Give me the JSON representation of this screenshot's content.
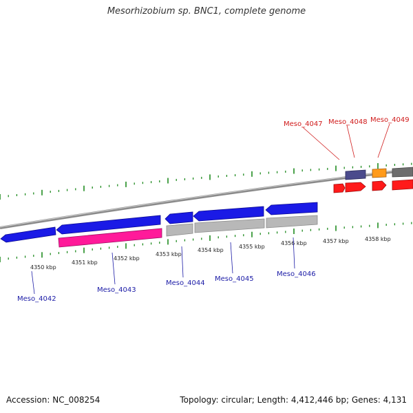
{
  "title": "Mesorhizobium sp. BNC1, complete genome",
  "footer": {
    "accession": "Accession: NC_008254",
    "summary": "Topology: circular; Length: 4,412,446 bp; Genes: 4,131"
  },
  "colors": {
    "backbone": "#8a8a8a",
    "tick": "#1e8a1e",
    "blue_gene": "#1a1ae6",
    "pink_gene": "#ff1a9a",
    "gray_gene": "#b8b8b8",
    "dark_gray_gene": "#6e6e6e",
    "purple_gene": "#4b4b8c",
    "orange_gene": "#ff9a1a",
    "red_gene": "#ff1a1a",
    "blue_label": "#1a1aa6",
    "red_label": "#d01a1a"
  },
  "kbp_ticks": [
    "4350 kbp",
    "4351 kbp",
    "4352 kbp",
    "4353 kbp",
    "4354 kbp",
    "4355 kbp",
    "4356 kbp",
    "4357 kbp",
    "4358 kbp"
  ],
  "genes": [
    {
      "name": "Meso_4042",
      "label_color": "blue_label"
    },
    {
      "name": "Meso_4043",
      "label_color": "blue_label"
    },
    {
      "name": "Meso_4044",
      "label_color": "blue_label"
    },
    {
      "name": "Meso_4045",
      "label_color": "blue_label"
    },
    {
      "name": "Meso_4046",
      "label_color": "blue_label"
    },
    {
      "name": "Meso_4047",
      "label_color": "red_label"
    },
    {
      "name": "Meso_4048",
      "label_color": "red_label"
    },
    {
      "name": "Meso_4049",
      "label_color": "red_label"
    }
  ]
}
